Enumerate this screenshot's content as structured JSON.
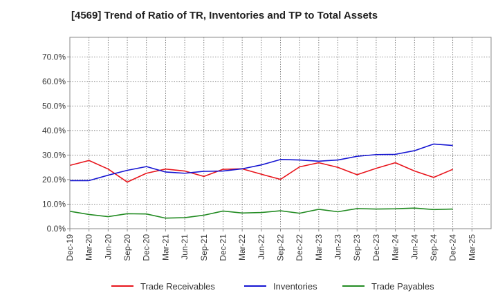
{
  "chart_data": {
    "type": "line",
    "title": "[4569]  Trend of Ratio of TR, Inventories and TP to Total Assets",
    "xlabel": "",
    "ylabel": "",
    "y_tick_labels": [
      "0.0%",
      "10.0%",
      "20.0%",
      "30.0%",
      "40.0%",
      "50.0%",
      "60.0%",
      "70.0%"
    ],
    "y_ticks": [
      0,
      10,
      20,
      30,
      40,
      50,
      60,
      70
    ],
    "ylim": [
      0,
      78
    ],
    "x_tick_labels": [
      "Dec-19",
      "Mar-20",
      "Jun-20",
      "Sep-20",
      "Dec-20",
      "Mar-21",
      "Jun-21",
      "Sep-21",
      "Dec-21",
      "Mar-22",
      "Jun-22",
      "Sep-22",
      "Dec-22",
      "Mar-23",
      "Jun-23",
      "Sep-23",
      "Dec-23",
      "Mar-24",
      "Jun-24",
      "Sep-24",
      "Dec-24",
      "Mar-25"
    ],
    "x": [
      "Dec-19",
      "Mar-20",
      "Jun-20",
      "Sep-20",
      "Dec-20",
      "Mar-21",
      "Jun-21",
      "Sep-21",
      "Dec-21",
      "Mar-22",
      "Jun-22",
      "Sep-22",
      "Dec-22",
      "Mar-23",
      "Jun-23",
      "Sep-23",
      "Dec-23",
      "Mar-24",
      "Jun-24",
      "Sep-24",
      "Dec-24"
    ],
    "grid": true,
    "legend_position": "bottom",
    "series": [
      {
        "name": "Trade Receivables",
        "color": "#e8141b",
        "values": [
          25.8,
          27.8,
          24.3,
          19.0,
          22.6,
          24.3,
          23.5,
          21.3,
          24.2,
          24.4,
          22.2,
          20.1,
          25.2,
          26.9,
          25.0,
          22.0,
          24.6,
          26.9,
          23.5,
          20.9,
          24.2
        ]
      },
      {
        "name": "Inventories",
        "color": "#1414d2",
        "values": [
          19.6,
          19.6,
          21.8,
          23.8,
          25.3,
          23.1,
          22.6,
          23.4,
          23.5,
          24.4,
          26.0,
          28.2,
          28.0,
          27.5,
          28.0,
          29.5,
          30.2,
          30.3,
          31.8,
          34.5,
          33.9
        ]
      },
      {
        "name": "Trade Payables",
        "color": "#228b22",
        "values": [
          7.1,
          5.8,
          4.9,
          6.1,
          6.0,
          4.3,
          4.5,
          5.5,
          7.2,
          6.4,
          6.6,
          7.3,
          6.3,
          7.9,
          6.9,
          8.2,
          8.0,
          8.1,
          8.4,
          7.8,
          8.0
        ]
      }
    ]
  }
}
